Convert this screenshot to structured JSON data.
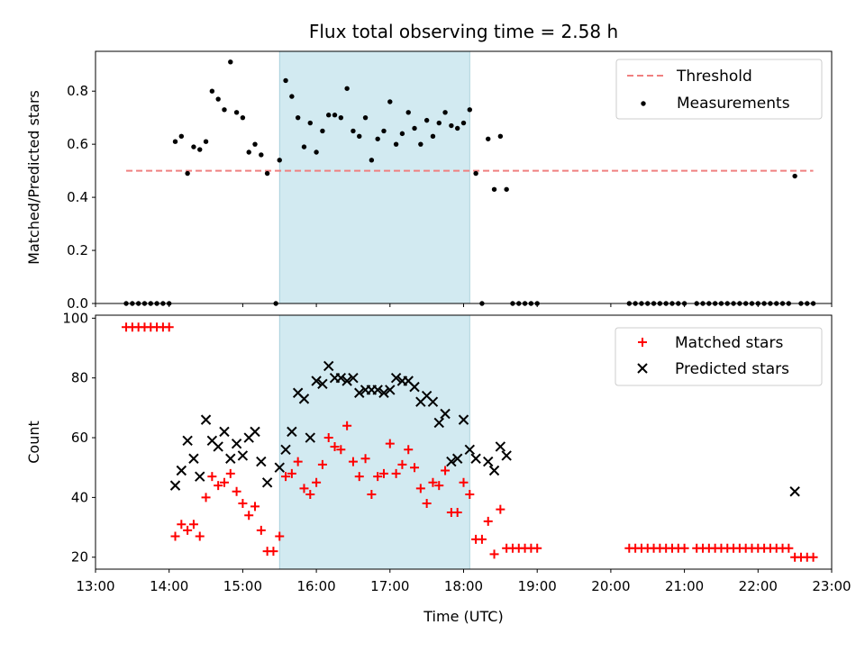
{
  "chart_data": [
    {
      "type": "scatter",
      "title": "Flux total observing time = 2.58 h",
      "xlabel": "",
      "ylabel": "Matched/Predicted stars",
      "xlim": [
        "13:00",
        "23:00"
      ],
      "ylim": [
        0,
        0.95
      ],
      "yticks": [
        0.0,
        0.2,
        0.4,
        0.6,
        0.8
      ],
      "ytick_labels": [
        "0.0",
        "0.2",
        "0.4",
        "0.6",
        "0.8"
      ],
      "highlight_band": {
        "x": [
          "15:30",
          "18:05"
        ],
        "color": "#add8e6"
      },
      "threshold": {
        "name": "Threshold",
        "y": 0.5,
        "x": [
          "13:25",
          "22:45"
        ],
        "color": "#f08080",
        "style": "dashed"
      },
      "legend_position": "top-right",
      "series": [
        {
          "name": "Measurements",
          "marker": "dot",
          "color": "#000000",
          "points": [
            [
              "13:25",
              0.0
            ],
            [
              "13:30",
              0.0
            ],
            [
              "13:35",
              0.0
            ],
            [
              "13:40",
              0.0
            ],
            [
              "13:45",
              0.0
            ],
            [
              "13:50",
              0.0
            ],
            [
              "13:55",
              0.0
            ],
            [
              "14:00",
              0.0
            ],
            [
              "14:05",
              0.61
            ],
            [
              "14:10",
              0.63
            ],
            [
              "14:15",
              0.49
            ],
            [
              "14:20",
              0.59
            ],
            [
              "14:25",
              0.58
            ],
            [
              "14:30",
              0.61
            ],
            [
              "14:35",
              0.8
            ],
            [
              "14:40",
              0.77
            ],
            [
              "14:45",
              0.73
            ],
            [
              "14:50",
              0.91
            ],
            [
              "14:55",
              0.72
            ],
            [
              "15:00",
              0.7
            ],
            [
              "15:05",
              0.57
            ],
            [
              "15:10",
              0.6
            ],
            [
              "15:15",
              0.56
            ],
            [
              "15:20",
              0.49
            ],
            [
              "15:27",
              0.0
            ],
            [
              "15:30",
              0.54
            ],
            [
              "15:35",
              0.84
            ],
            [
              "15:40",
              0.78
            ],
            [
              "15:45",
              0.7
            ],
            [
              "15:50",
              0.59
            ],
            [
              "15:55",
              0.68
            ],
            [
              "16:00",
              0.57
            ],
            [
              "16:05",
              0.65
            ],
            [
              "16:10",
              0.71
            ],
            [
              "16:15",
              0.71
            ],
            [
              "16:20",
              0.7
            ],
            [
              "16:25",
              0.81
            ],
            [
              "16:30",
              0.65
            ],
            [
              "16:35",
              0.63
            ],
            [
              "16:40",
              0.7
            ],
            [
              "16:45",
              0.54
            ],
            [
              "16:50",
              0.62
            ],
            [
              "16:55",
              0.65
            ],
            [
              "17:00",
              0.76
            ],
            [
              "17:05",
              0.6
            ],
            [
              "17:10",
              0.64
            ],
            [
              "17:15",
              0.72
            ],
            [
              "17:20",
              0.66
            ],
            [
              "17:25",
              0.6
            ],
            [
              "17:30",
              0.69
            ],
            [
              "17:35",
              0.63
            ],
            [
              "17:40",
              0.68
            ],
            [
              "17:45",
              0.72
            ],
            [
              "17:50",
              0.67
            ],
            [
              "17:55",
              0.66
            ],
            [
              "18:00",
              0.68
            ],
            [
              "18:05",
              0.73
            ],
            [
              "18:10",
              0.49
            ],
            [
              "18:15",
              0.0
            ],
            [
              "18:20",
              0.62
            ],
            [
              "18:25",
              0.43
            ],
            [
              "18:30",
              0.63
            ],
            [
              "18:35",
              0.43
            ],
            [
              "18:40",
              0.0
            ],
            [
              "18:45",
              0.0
            ],
            [
              "18:50",
              0.0
            ],
            [
              "18:55",
              0.0
            ],
            [
              "19:00",
              0.0
            ],
            [
              "20:15",
              0.0
            ],
            [
              "20:20",
              0.0
            ],
            [
              "20:25",
              0.0
            ],
            [
              "20:30",
              0.0
            ],
            [
              "20:35",
              0.0
            ],
            [
              "20:40",
              0.0
            ],
            [
              "20:45",
              0.0
            ],
            [
              "20:50",
              0.0
            ],
            [
              "20:55",
              0.0
            ],
            [
              "21:00",
              0.0
            ],
            [
              "21:10",
              0.0
            ],
            [
              "21:15",
              0.0
            ],
            [
              "21:20",
              0.0
            ],
            [
              "21:25",
              0.0
            ],
            [
              "21:30",
              0.0
            ],
            [
              "21:35",
              0.0
            ],
            [
              "21:40",
              0.0
            ],
            [
              "21:45",
              0.0
            ],
            [
              "21:50",
              0.0
            ],
            [
              "21:55",
              0.0
            ],
            [
              "22:00",
              0.0
            ],
            [
              "22:05",
              0.0
            ],
            [
              "22:10",
              0.0
            ],
            [
              "22:15",
              0.0
            ],
            [
              "22:20",
              0.0
            ],
            [
              "22:25",
              0.0
            ],
            [
              "22:30",
              0.48
            ],
            [
              "22:35",
              0.0
            ],
            [
              "22:40",
              0.0
            ],
            [
              "22:45",
              0.0
            ]
          ]
        }
      ]
    },
    {
      "type": "scatter",
      "title": "",
      "xlabel": "Time (UTC)",
      "ylabel": "Count",
      "xlim": [
        "13:00",
        "23:00"
      ],
      "xticks": [
        "13:00",
        "14:00",
        "15:00",
        "16:00",
        "17:00",
        "18:00",
        "19:00",
        "20:00",
        "21:00",
        "22:00",
        "23:00"
      ],
      "ylim": [
        16,
        101
      ],
      "yticks": [
        20,
        40,
        60,
        80,
        100
      ],
      "ytick_labels": [
        "20",
        "40",
        "60",
        "80",
        "100"
      ],
      "highlight_band": {
        "x": [
          "15:30",
          "18:05"
        ],
        "color": "#add8e6"
      },
      "legend_position": "top-right",
      "series": [
        {
          "name": "Matched stars",
          "marker": "plus",
          "color": "#ff0000",
          "points": [
            [
              "13:25",
              97
            ],
            [
              "13:30",
              97
            ],
            [
              "13:35",
              97
            ],
            [
              "13:40",
              97
            ],
            [
              "13:45",
              97
            ],
            [
              "13:50",
              97
            ],
            [
              "13:55",
              97
            ],
            [
              "14:00",
              97
            ],
            [
              "14:05",
              27
            ],
            [
              "14:10",
              31
            ],
            [
              "14:15",
              29
            ],
            [
              "14:20",
              31
            ],
            [
              "14:25",
              27
            ],
            [
              "14:30",
              40
            ],
            [
              "14:35",
              47
            ],
            [
              "14:40",
              44
            ],
            [
              "14:45",
              45
            ],
            [
              "14:50",
              48
            ],
            [
              "14:55",
              42
            ],
            [
              "15:00",
              38
            ],
            [
              "15:05",
              34
            ],
            [
              "15:10",
              37
            ],
            [
              "15:15",
              29
            ],
            [
              "15:20",
              22
            ],
            [
              "15:25",
              22
            ],
            [
              "15:30",
              27
            ],
            [
              "15:35",
              47
            ],
            [
              "15:40",
              48
            ],
            [
              "15:45",
              52
            ],
            [
              "15:50",
              43
            ],
            [
              "15:55",
              41
            ],
            [
              "16:00",
              45
            ],
            [
              "16:05",
              51
            ],
            [
              "16:10",
              60
            ],
            [
              "16:15",
              57
            ],
            [
              "16:20",
              56
            ],
            [
              "16:25",
              64
            ],
            [
              "16:30",
              52
            ],
            [
              "16:35",
              47
            ],
            [
              "16:40",
              53
            ],
            [
              "16:45",
              41
            ],
            [
              "16:50",
              47
            ],
            [
              "16:55",
              48
            ],
            [
              "17:00",
              58
            ],
            [
              "17:05",
              48
            ],
            [
              "17:10",
              51
            ],
            [
              "17:15",
              56
            ],
            [
              "17:20",
              50
            ],
            [
              "17:25",
              43
            ],
            [
              "17:30",
              38
            ],
            [
              "17:35",
              45
            ],
            [
              "17:40",
              44
            ],
            [
              "17:45",
              49
            ],
            [
              "17:50",
              35
            ],
            [
              "17:55",
              35
            ],
            [
              "18:00",
              45
            ],
            [
              "18:05",
              41
            ],
            [
              "18:10",
              26
            ],
            [
              "18:15",
              26
            ],
            [
              "18:20",
              32
            ],
            [
              "18:25",
              21
            ],
            [
              "18:30",
              36
            ],
            [
              "18:35",
              23
            ],
            [
              "18:40",
              23
            ],
            [
              "18:45",
              23
            ],
            [
              "18:50",
              23
            ],
            [
              "18:55",
              23
            ],
            [
              "19:00",
              23
            ],
            [
              "20:15",
              23
            ],
            [
              "20:20",
              23
            ],
            [
              "20:25",
              23
            ],
            [
              "20:30",
              23
            ],
            [
              "20:35",
              23
            ],
            [
              "20:40",
              23
            ],
            [
              "20:45",
              23
            ],
            [
              "20:50",
              23
            ],
            [
              "20:55",
              23
            ],
            [
              "21:00",
              23
            ],
            [
              "21:10",
              23
            ],
            [
              "21:15",
              23
            ],
            [
              "21:20",
              23
            ],
            [
              "21:25",
              23
            ],
            [
              "21:30",
              23
            ],
            [
              "21:35",
              23
            ],
            [
              "21:40",
              23
            ],
            [
              "21:45",
              23
            ],
            [
              "21:50",
              23
            ],
            [
              "21:55",
              23
            ],
            [
              "22:00",
              23
            ],
            [
              "22:05",
              23
            ],
            [
              "22:10",
              23
            ],
            [
              "22:15",
              23
            ],
            [
              "22:20",
              23
            ],
            [
              "22:25",
              23
            ],
            [
              "22:30",
              20
            ],
            [
              "22:35",
              20
            ],
            [
              "22:40",
              20
            ],
            [
              "22:45",
              20
            ]
          ]
        },
        {
          "name": "Predicted stars",
          "marker": "x",
          "color": "#000000",
          "points": [
            [
              "14:05",
              44
            ],
            [
              "14:10",
              49
            ],
            [
              "14:15",
              59
            ],
            [
              "14:20",
              53
            ],
            [
              "14:25",
              47
            ],
            [
              "14:30",
              66
            ],
            [
              "14:35",
              59
            ],
            [
              "14:40",
              57
            ],
            [
              "14:45",
              62
            ],
            [
              "14:50",
              53
            ],
            [
              "14:55",
              58
            ],
            [
              "15:00",
              54
            ],
            [
              "15:05",
              60
            ],
            [
              "15:10",
              62
            ],
            [
              "15:15",
              52
            ],
            [
              "15:20",
              45
            ],
            [
              "15:30",
              50
            ],
            [
              "15:35",
              56
            ],
            [
              "15:40",
              62
            ],
            [
              "15:45",
              75
            ],
            [
              "15:50",
              73
            ],
            [
              "15:55",
              60
            ],
            [
              "16:00",
              79
            ],
            [
              "16:05",
              78
            ],
            [
              "16:10",
              84
            ],
            [
              "16:15",
              80
            ],
            [
              "16:20",
              80
            ],
            [
              "16:25",
              79
            ],
            [
              "16:30",
              80
            ],
            [
              "16:35",
              75
            ],
            [
              "16:40",
              76
            ],
            [
              "16:45",
              76
            ],
            [
              "16:50",
              76
            ],
            [
              "16:55",
              75
            ],
            [
              "17:00",
              76
            ],
            [
              "17:05",
              80
            ],
            [
              "17:10",
              79
            ],
            [
              "17:15",
              79
            ],
            [
              "17:20",
              77
            ],
            [
              "17:25",
              72
            ],
            [
              "17:30",
              74
            ],
            [
              "17:35",
              72
            ],
            [
              "17:40",
              65
            ],
            [
              "17:45",
              68
            ],
            [
              "17:50",
              52
            ],
            [
              "17:55",
              53
            ],
            [
              "18:00",
              66
            ],
            [
              "18:05",
              56
            ],
            [
              "18:10",
              53
            ],
            [
              "18:20",
              52
            ],
            [
              "18:25",
              49
            ],
            [
              "18:30",
              57
            ],
            [
              "18:35",
              54
            ],
            [
              "22:30",
              42
            ]
          ]
        }
      ]
    }
  ]
}
